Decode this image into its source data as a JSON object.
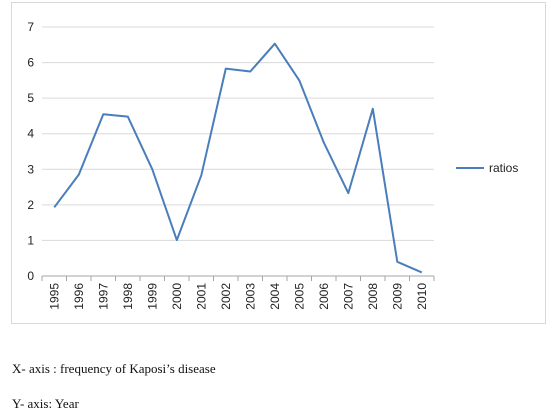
{
  "chart_data": {
    "type": "line",
    "x": [
      "1995",
      "1996",
      "1997",
      "1998",
      "1999",
      "2000",
      "2001",
      "2002",
      "2003",
      "2004",
      "2005",
      "2006",
      "2007",
      "2008",
      "2009",
      "2010"
    ],
    "series": [
      {
        "name": "ratios",
        "color": "#4a7ebb",
        "values": [
          1.93,
          2.85,
          4.55,
          4.48,
          3.0,
          1.01,
          2.83,
          5.83,
          5.75,
          6.53,
          5.5,
          3.75,
          2.33,
          4.7,
          0.4,
          0.1
        ]
      }
    ],
    "ylim": [
      0,
      7
    ],
    "yticks": [
      "0",
      "1",
      "2",
      "3",
      "4",
      "5",
      "6",
      "7"
    ],
    "grid": true,
    "legend_position": "right"
  },
  "captions": {
    "x_axis": "X- axis : frequency of Kaposi’s disease",
    "y_axis": "Y- axis: Year"
  }
}
